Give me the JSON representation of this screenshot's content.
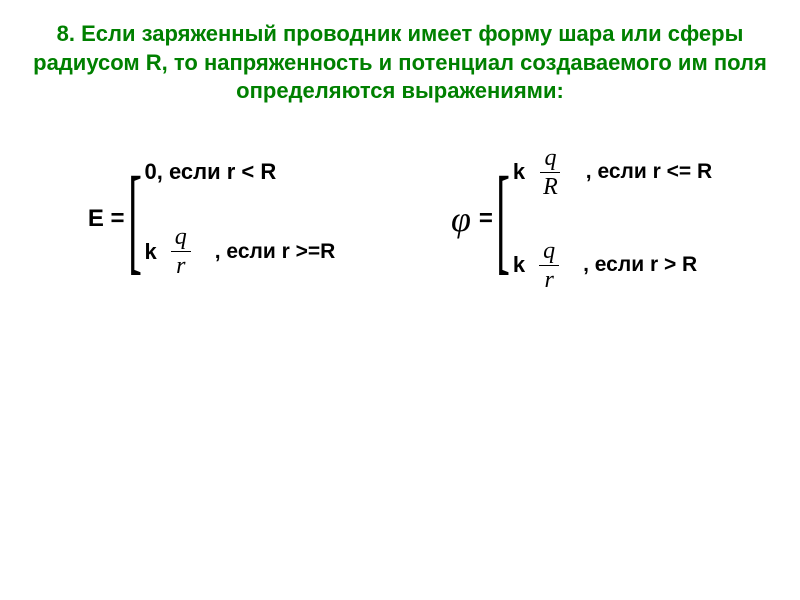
{
  "title": "8. Если заряженный проводник имеет форму шара или сферы радиусом R, то напряженность и потенциал создаваемого им поля определяются выражениями:",
  "colors": {
    "title_color": "#008000",
    "text_color": "#000000",
    "background": "#ffffff"
  },
  "typography": {
    "title_fontsize": 22,
    "formula_fontsize": 22,
    "fraction_fontsize": 24
  },
  "E_formula": {
    "lhs": "E =",
    "case1": "0, если r < R",
    "case2": {
      "coef": "k",
      "frac_num": "q",
      "frac_den": "r",
      "cond": ", если r >=R"
    }
  },
  "phi_formula": {
    "symbol": "φ",
    "eq": "=",
    "case1": {
      "coef": "k",
      "frac_num": "q",
      "frac_den": "R",
      "cond": ", если r <= R"
    },
    "case2": {
      "coef": "k",
      "frac_num": "q",
      "frac_den": "r",
      "cond": ", если r > R"
    }
  }
}
